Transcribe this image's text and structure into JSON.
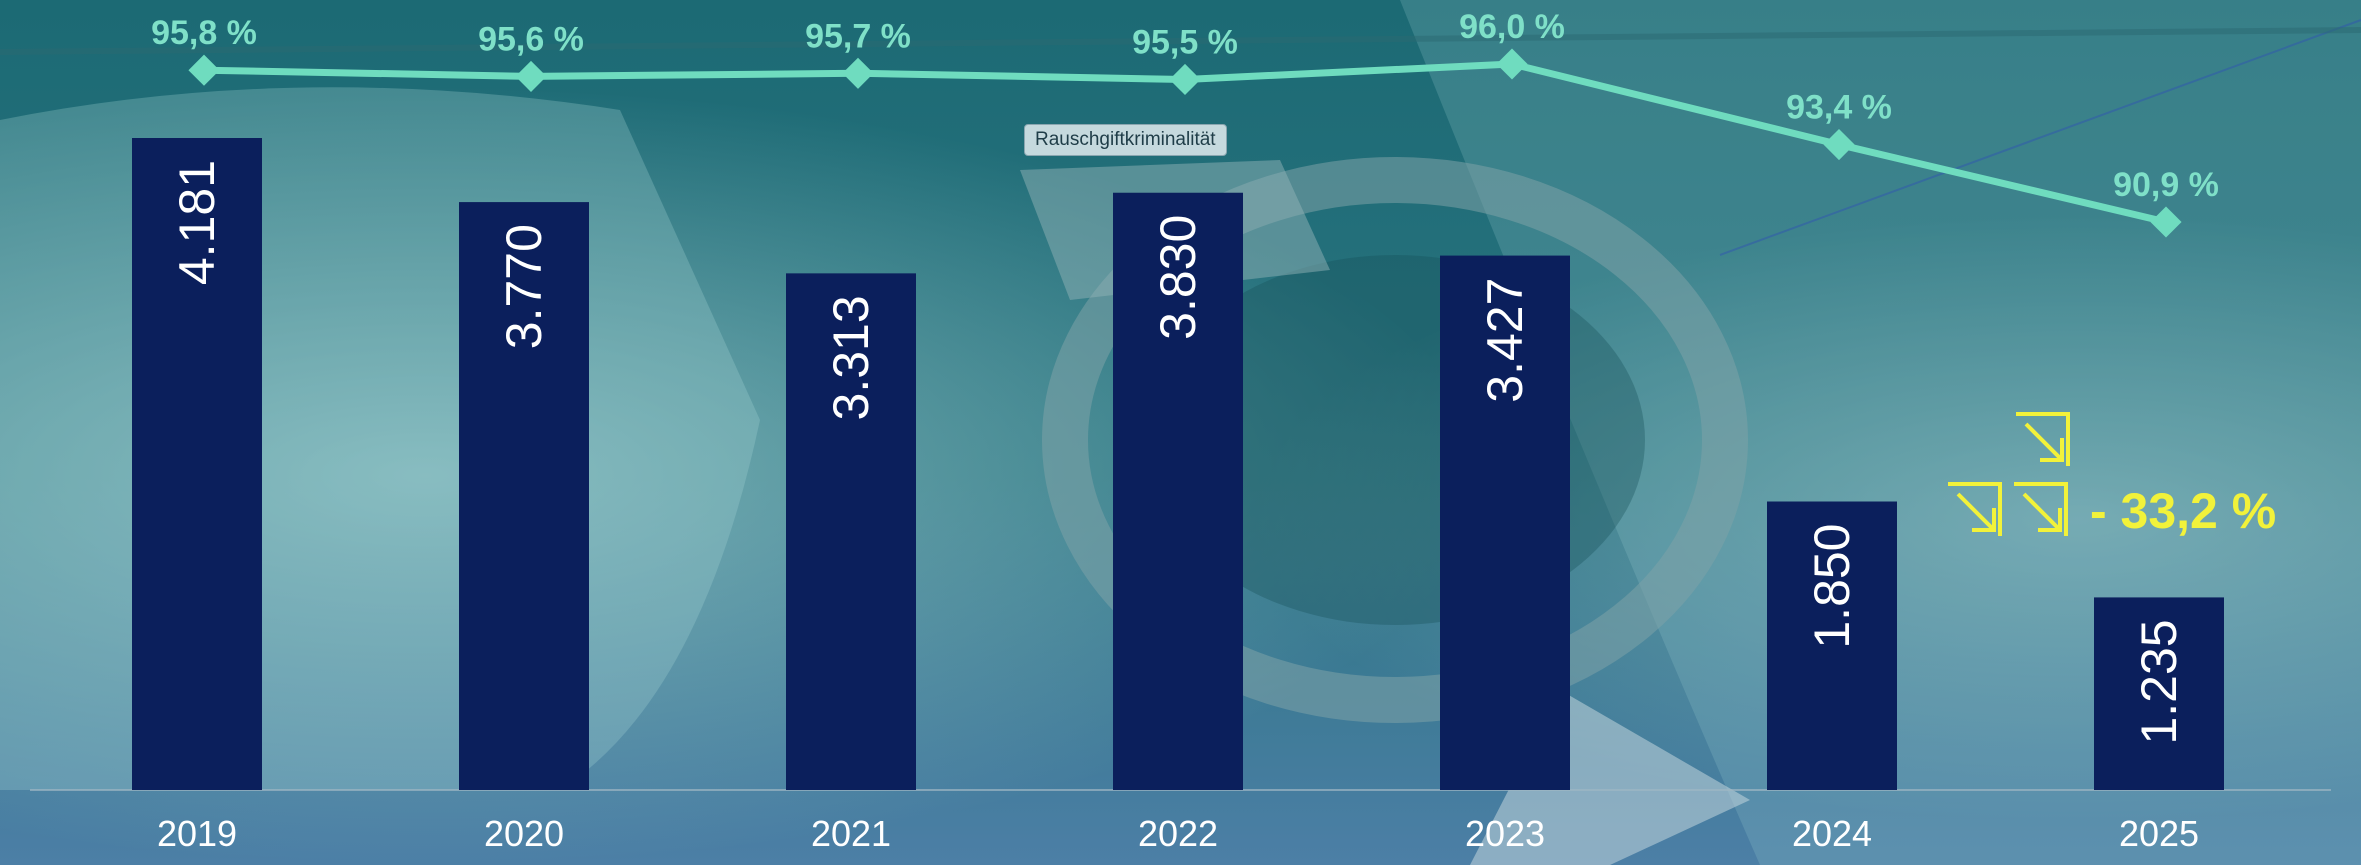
{
  "chart_data": {
    "type": "bar",
    "categories": [
      "2019",
      "2020",
      "2021",
      "2022",
      "2023",
      "2024",
      "2025"
    ],
    "series": [
      {
        "values": [
          4181,
          3770,
          3313,
          3830,
          3427,
          1850,
          1235
        ],
        "labels": [
          "4.181",
          "3.770",
          "3.313",
          "3.830",
          "3.427",
          "1.850",
          "1.235"
        ]
      }
    ],
    "line_series": {
      "values": [
        95.8,
        95.6,
        95.7,
        95.5,
        96.0,
        93.4,
        90.9
      ],
      "labels": [
        "95,8 %",
        "95,6 %",
        "95,7 %",
        "95,5 %",
        "96,0 %",
        "93,4 %",
        "90,9 %"
      ]
    },
    "annotation": "- 33,2 %",
    "grid": false,
    "legend": "none"
  },
  "photo_tag": "Rauschgiftkriminalität",
  "colors": {
    "bar": "#0b1f5c",
    "line": "#6fdcbf",
    "annotation": "#f2f23a",
    "background": "#1f6a78"
  }
}
